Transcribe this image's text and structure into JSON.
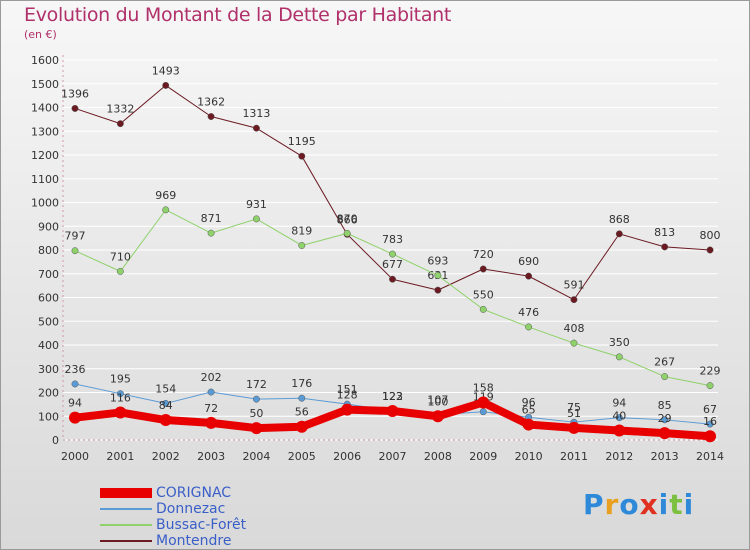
{
  "title": "Evolution du Montant de la Dette par Habitant",
  "subtitle": "(en €)",
  "brand": {
    "text": "Proxiti",
    "colors": [
      "#2e8ad8",
      "#e8a020",
      "#2e8ad8",
      "#e03020",
      "#2e8ad8",
      "#7cc040",
      "#2e8ad8"
    ]
  },
  "chart_data": {
    "type": "line",
    "x": [
      "2000",
      "2001",
      "2002",
      "2003",
      "2004",
      "2005",
      "2006",
      "2007",
      "2008",
      "2009",
      "2010",
      "2011",
      "2012",
      "2013",
      "2014"
    ],
    "ylim": [
      0,
      1600
    ],
    "yticks": [
      0,
      100,
      200,
      300,
      400,
      500,
      600,
      700,
      800,
      900,
      1000,
      1100,
      1200,
      1300,
      1400,
      1500,
      1600
    ],
    "grid": true,
    "legend_position": "bottom-left",
    "series": [
      {
        "name": "Montendre",
        "color": "#6b1a22",
        "line_width": 1,
        "values": [
          1396,
          1332,
          1493,
          1362,
          1313,
          1195,
          866,
          677,
          631,
          720,
          690,
          591,
          868,
          813,
          800
        ],
        "labels": [
          "1396",
          "1332",
          "1493",
          "1362",
          "1313",
          "1195",
          "866",
          "677",
          "631",
          "720",
          "690",
          "591",
          "868",
          "813",
          "800"
        ]
      },
      {
        "name": "Bussac-Forêt",
        "color": "#8fd16a",
        "line_width": 1,
        "values": [
          797,
          710,
          969,
          871,
          931,
          819,
          870,
          783,
          693,
          550,
          476,
          408,
          350,
          267,
          229
        ],
        "labels": [
          "797",
          "710",
          "969",
          "871",
          "931",
          "819",
          "870",
          "783",
          "693",
          "550",
          "476",
          "408",
          "350",
          "267",
          "229"
        ]
      },
      {
        "name": "Donnezac",
        "color": "#5b9bd5",
        "line_width": 1,
        "values": [
          236,
          195,
          154,
          202,
          172,
          176,
          151,
          123,
          107,
          119,
          96,
          75,
          94,
          85,
          67
        ],
        "labels": [
          "236",
          "195",
          "154",
          "202",
          "172",
          "176",
          "151",
          "123",
          "107",
          "119",
          "96",
          "75",
          "94",
          "85",
          "67"
        ]
      },
      {
        "name": "CORIGNAC",
        "color": "#e80000",
        "line_width": 8,
        "values": [
          94,
          116,
          84,
          72,
          50,
          56,
          128,
          122,
          100,
          158,
          65,
          51,
          40,
          29,
          16
        ],
        "labels": [
          "94",
          "116",
          "84",
          "72",
          "50",
          "56",
          "128",
          "122",
          "100",
          "158",
          "65",
          "51",
          "40",
          "29",
          "16"
        ]
      }
    ],
    "legend_order": [
      "CORIGNAC",
      "Donnezac",
      "Bussac-Forêt",
      "Montendre"
    ]
  }
}
